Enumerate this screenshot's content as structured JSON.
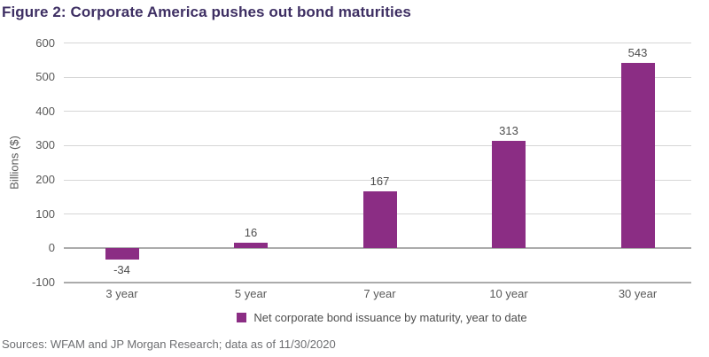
{
  "source_note": "Sources: WFAM and JP Morgan Research; data as of 11/30/2020",
  "colors": {
    "title": "#3e2f63",
    "bar": "#8b2d84",
    "axis_text": "#595959",
    "data_label": "#4d4d4d",
    "legend_text": "#4d4d4d",
    "source_text": "#6d6e71",
    "gridline": "#d6d6d6",
    "strong_line": "#ababab",
    "background": "#ffffff"
  },
  "chart_data": {
    "type": "bar",
    "title": "Figure 2: Corporate America pushes out bond maturities",
    "categories": [
      "3 year",
      "5 year",
      "7 year",
      "10 year",
      "30 year"
    ],
    "values": [
      -34,
      16,
      167,
      313,
      543
    ],
    "bar_labels": [
      "-34",
      "16",
      "167",
      "313",
      "543"
    ],
    "xlabel": "",
    "ylabel": "Billions ($)",
    "ylim": [
      -100,
      600
    ],
    "ytick_step": 100,
    "ytick_labels": [
      "600",
      "500",
      "400",
      "300",
      "200",
      "100",
      "0",
      "-100"
    ],
    "grid": "horizontal",
    "legend_label": "Net corporate bond issuance by maturity, year to date",
    "legend_position": "bottom-center",
    "data_labels_shown": true
  }
}
